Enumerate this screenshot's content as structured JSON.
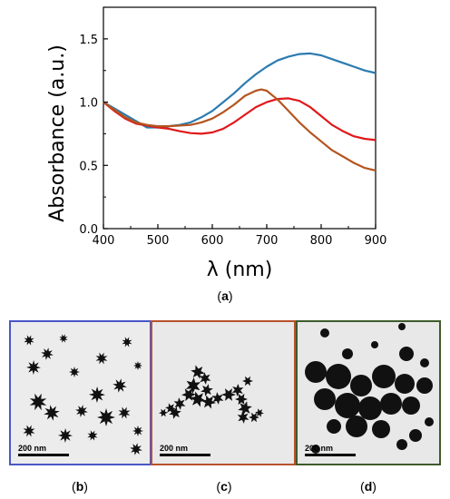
{
  "chart_data": {
    "type": "line",
    "xlabel": "λ (nm)",
    "ylabel": "Absorbance (a.u.)",
    "xlim": [
      400,
      900
    ],
    "ylim": [
      0.0,
      1.75
    ],
    "xticks": [
      "400",
      "500",
      "600",
      "700",
      "800",
      "900"
    ],
    "yticks": [
      "0.0",
      "0.5",
      "1.0",
      "1.5"
    ],
    "grid": false,
    "series": [
      {
        "color": "#2b7bb0",
        "x": [
          400,
          420,
          440,
          460,
          480,
          500,
          520,
          540,
          560,
          580,
          600,
          620,
          640,
          660,
          680,
          700,
          720,
          740,
          760,
          780,
          800,
          820,
          840,
          860,
          880,
          900
        ],
        "y": [
          1.0,
          0.95,
          0.9,
          0.85,
          0.8,
          0.8,
          0.81,
          0.82,
          0.84,
          0.88,
          0.93,
          1.0,
          1.07,
          1.15,
          1.22,
          1.28,
          1.33,
          1.36,
          1.38,
          1.385,
          1.37,
          1.34,
          1.31,
          1.28,
          1.25,
          1.23
        ]
      },
      {
        "color": "#e0181b",
        "x": [
          400,
          420,
          440,
          460,
          480,
          500,
          520,
          540,
          560,
          580,
          600,
          620,
          640,
          660,
          680,
          700,
          720,
          740,
          760,
          780,
          800,
          820,
          840,
          860,
          880,
          900
        ],
        "y": [
          1.0,
          0.93,
          0.87,
          0.83,
          0.815,
          0.8,
          0.79,
          0.77,
          0.755,
          0.75,
          0.76,
          0.79,
          0.84,
          0.9,
          0.96,
          1.0,
          1.025,
          1.03,
          1.01,
          0.96,
          0.89,
          0.82,
          0.77,
          0.73,
          0.71,
          0.7
        ]
      },
      {
        "color": "#b4551f",
        "x": [
          400,
          420,
          440,
          460,
          480,
          500,
          520,
          540,
          560,
          580,
          600,
          620,
          640,
          660,
          680,
          690,
          700,
          720,
          740,
          760,
          780,
          800,
          820,
          840,
          860,
          880,
          900
        ],
        "y": [
          1.0,
          0.94,
          0.88,
          0.84,
          0.82,
          0.81,
          0.81,
          0.815,
          0.82,
          0.84,
          0.87,
          0.92,
          0.98,
          1.05,
          1.09,
          1.1,
          1.09,
          1.02,
          0.93,
          0.84,
          0.76,
          0.69,
          0.62,
          0.57,
          0.52,
          0.48,
          0.46
        ]
      }
    ]
  },
  "captions": {
    "a": "a",
    "b": "b",
    "c": "c",
    "d": "d"
  },
  "panels": {
    "b": {
      "scale_label": "200 nm",
      "border_color": "#4a56c9"
    },
    "c": {
      "scale_label": "200 nm",
      "border_color": "#b8522c"
    },
    "d": {
      "scale_label": "200 nm",
      "border_color": "#3f5a2c"
    }
  }
}
